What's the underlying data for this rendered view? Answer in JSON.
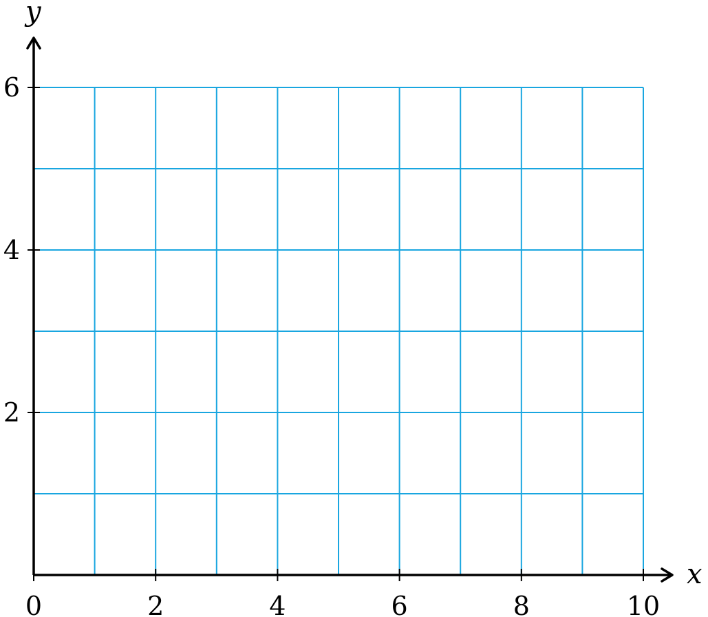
{
  "chart_data": {
    "type": "line",
    "title": "",
    "xlabel": "x",
    "ylabel": "y",
    "xlim": [
      0,
      10
    ],
    "ylim": [
      0,
      6
    ],
    "x_ticks": [
      0,
      2,
      4,
      6,
      8,
      10
    ],
    "y_ticks": [
      2,
      4,
      6
    ],
    "x_tick_labels": [
      "0",
      "2",
      "4",
      "6",
      "8",
      "10"
    ],
    "y_tick_labels": [
      "2",
      "4",
      "6"
    ],
    "grid": true,
    "grid_step_x": 1,
    "grid_step_y": 1,
    "series": []
  },
  "colors": {
    "grid": "#19a6e0",
    "axes": "#000000"
  }
}
